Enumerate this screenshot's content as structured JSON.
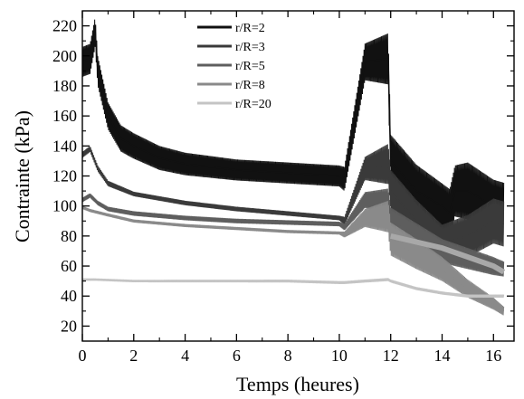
{
  "chart_data": {
    "type": "line",
    "xlabel": "Temps (heures)",
    "ylabel": "Contrainte (kPa)",
    "xlim": [
      0,
      16.8
    ],
    "ylim": [
      10,
      230
    ],
    "xticks": [
      0,
      2,
      4,
      6,
      8,
      10,
      12,
      14,
      16
    ],
    "yticks": [
      20,
      40,
      60,
      80,
      100,
      120,
      140,
      160,
      180,
      200,
      220
    ],
    "xtick_labels": [
      "0",
      "2",
      "4",
      "6",
      "8",
      "10",
      "12",
      "14",
      "16"
    ],
    "ytick_labels": [
      "20",
      "40",
      "60",
      "80",
      "100",
      "120",
      "140",
      "160",
      "180",
      "200",
      "220"
    ],
    "legend_position": "top-center",
    "grid": false,
    "series": [
      {
        "name": "r/R=2",
        "color": "#111111",
        "points": [
          [
            0,
            196
          ],
          [
            0.3,
            198
          ],
          [
            0.5,
            216
          ],
          [
            0.6,
            190
          ],
          [
            1,
            160
          ],
          [
            1.5,
            145
          ],
          [
            2,
            140
          ],
          [
            3,
            132
          ],
          [
            4,
            128
          ],
          [
            6,
            124
          ],
          [
            8,
            122
          ],
          [
            10,
            120
          ],
          [
            10.2,
            118
          ],
          [
            11,
            196
          ],
          [
            11.9,
            198
          ],
          [
            12,
            130
          ],
          [
            13,
            110
          ],
          [
            13.5,
            105
          ],
          [
            14,
            100
          ],
          [
            14.3,
            95
          ],
          [
            14.5,
            110
          ],
          [
            15,
            110
          ],
          [
            16,
            100
          ],
          [
            16.4,
            98
          ]
        ],
        "band": [
          [
            0.5,
            20
          ],
          [
            1,
            18
          ],
          [
            2,
            17
          ],
          [
            4,
            15
          ],
          [
            6,
            14
          ],
          [
            8,
            14
          ],
          [
            10,
            14
          ],
          [
            12,
            35
          ],
          [
            13,
            35
          ],
          [
            14,
            30
          ],
          [
            15,
            38
          ],
          [
            16,
            35
          ],
          [
            16.4,
            35
          ]
        ]
      },
      {
        "name": "r/R=3",
        "color": "#3a3a3a",
        "points": [
          [
            0,
            134
          ],
          [
            0.3,
            138
          ],
          [
            0.6,
            125
          ],
          [
            1,
            115
          ],
          [
            2,
            108
          ],
          [
            4,
            102
          ],
          [
            6,
            98
          ],
          [
            8,
            95
          ],
          [
            10,
            92
          ],
          [
            10.2,
            90
          ],
          [
            11,
            125
          ],
          [
            11.9,
            128
          ],
          [
            12,
            110
          ],
          [
            13,
            90
          ],
          [
            14,
            75
          ],
          [
            15,
            80
          ],
          [
            16,
            90
          ],
          [
            16.4,
            88
          ]
        ],
        "band": [
          [
            0.5,
            4
          ],
          [
            2,
            3
          ],
          [
            10,
            3
          ],
          [
            12,
            28
          ],
          [
            13,
            28
          ],
          [
            14,
            25
          ],
          [
            15,
            28
          ],
          [
            16,
            30
          ],
          [
            16.4,
            30
          ]
        ]
      },
      {
        "name": "r/R=5",
        "color": "#5e5e5e",
        "points": [
          [
            0,
            104
          ],
          [
            0.3,
            107
          ],
          [
            0.6,
            102
          ],
          [
            1,
            98
          ],
          [
            2,
            95
          ],
          [
            4,
            92
          ],
          [
            6,
            90
          ],
          [
            8,
            89
          ],
          [
            10,
            88
          ],
          [
            10.2,
            86
          ],
          [
            11,
            104
          ],
          [
            11.9,
            103
          ],
          [
            12,
            90
          ],
          [
            13,
            80
          ],
          [
            14,
            70
          ],
          [
            15,
            65
          ],
          [
            16,
            60
          ],
          [
            16.4,
            58
          ]
        ],
        "band": [
          [
            0.5,
            3
          ],
          [
            10,
            3
          ],
          [
            12,
            18
          ],
          [
            14,
            16
          ],
          [
            16,
            12
          ],
          [
            16.4,
            10
          ]
        ]
      },
      {
        "name": "r/R=8",
        "color": "#8a8a8a",
        "points": [
          [
            0,
            99
          ],
          [
            0.3,
            97
          ],
          [
            1,
            94
          ],
          [
            2,
            90
          ],
          [
            4,
            87
          ],
          [
            6,
            85
          ],
          [
            8,
            83
          ],
          [
            10,
            82
          ],
          [
            10.2,
            81
          ],
          [
            11,
            92
          ],
          [
            11.9,
            93
          ],
          [
            12,
            78
          ],
          [
            13,
            68
          ],
          [
            14,
            58
          ],
          [
            15,
            45
          ],
          [
            16,
            35
          ],
          [
            16.4,
            30
          ]
        ],
        "band": [
          [
            0.5,
            2
          ],
          [
            10,
            2
          ],
          [
            12,
            22
          ],
          [
            13,
            20
          ],
          [
            14,
            16
          ],
          [
            15,
            12
          ],
          [
            16,
            8
          ],
          [
            16.4,
            6
          ]
        ]
      },
      {
        "name": "r/R=20",
        "color": "#c4c4c4",
        "points": [
          [
            0,
            51
          ],
          [
            0.5,
            51
          ],
          [
            2,
            50
          ],
          [
            4,
            50
          ],
          [
            6,
            50
          ],
          [
            8,
            50
          ],
          [
            10,
            49
          ],
          [
            10.2,
            49
          ],
          [
            11,
            50
          ],
          [
            11.9,
            51
          ],
          [
            12,
            50
          ],
          [
            13,
            45
          ],
          [
            14,
            42
          ],
          [
            15,
            40
          ],
          [
            16,
            40
          ],
          [
            16.4,
            40
          ]
        ],
        "band": [
          [
            0.5,
            1.5
          ],
          [
            12,
            2
          ],
          [
            16.4,
            2
          ]
        ]
      }
    ],
    "overlays": [
      {
        "name": "thick-light",
        "color": "#a8a8a8",
        "points": [
          [
            12,
            80
          ],
          [
            13,
            76
          ],
          [
            14,
            72
          ],
          [
            15,
            66
          ],
          [
            16,
            60
          ],
          [
            16.4,
            56
          ]
        ]
      }
    ]
  }
}
